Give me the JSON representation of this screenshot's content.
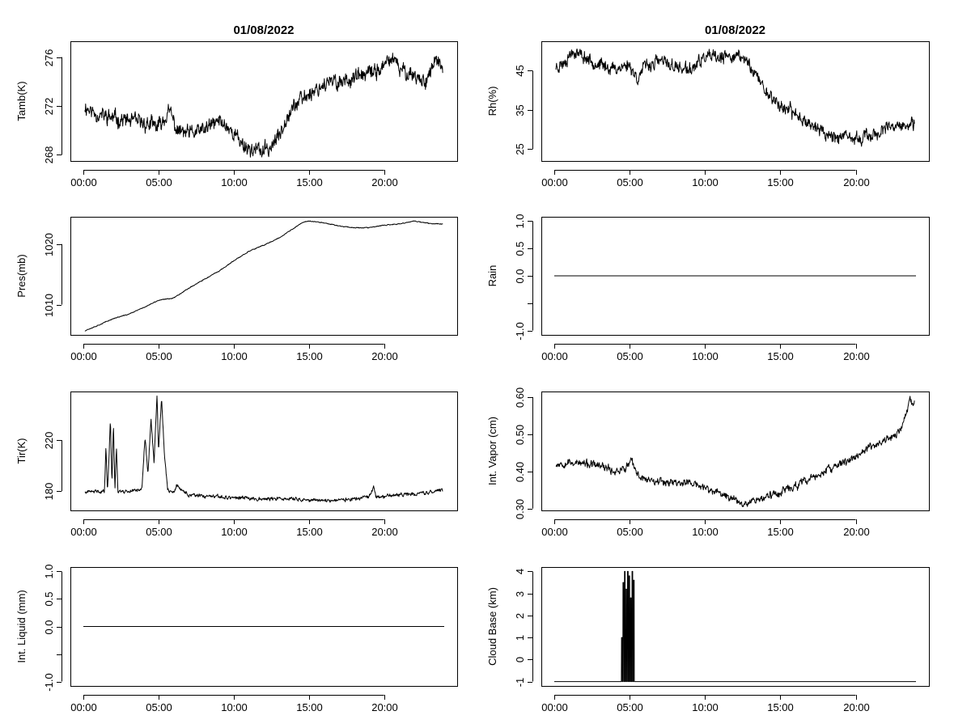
{
  "chart_data": [
    {
      "id": "tamb",
      "type": "line",
      "title": "01/08/2022",
      "xlabel": "",
      "ylabel": "Tamb(K)",
      "x_ticks": [
        "00:00",
        "05:00",
        "10:00",
        "15:00",
        "20:00"
      ],
      "x_tick_hours": [
        0,
        5,
        10,
        15,
        20
      ],
      "xlim": [
        0,
        24
      ],
      "ylim": [
        267.5,
        277.3
      ],
      "y_ticks": [
        268,
        272,
        276
      ],
      "y_tick_labels": [
        "268",
        "272",
        "276"
      ],
      "noise": 0.55,
      "seed": 11,
      "series": [
        {
          "name": "Tamb",
          "x": [
            0.1,
            0.5,
            1,
            2,
            3,
            4,
            5,
            5.5,
            5.8,
            6.2,
            7,
            8,
            9,
            9.5,
            10,
            10.5,
            11,
            12,
            12.5,
            13,
            13.5,
            14,
            15,
            16,
            17,
            18,
            19,
            20,
            20.5,
            21,
            22,
            22.5,
            23,
            23.5,
            23.9
          ],
          "y": [
            272.0,
            271.6,
            271.3,
            271.0,
            270.8,
            270.6,
            270.3,
            271.2,
            271.5,
            270.0,
            269.7,
            270.0,
            270.8,
            270.4,
            269.8,
            269.0,
            268.5,
            268.3,
            268.7,
            269.5,
            271.2,
            272.0,
            273.0,
            273.8,
            274.0,
            274.3,
            274.6,
            275.2,
            276.0,
            275.0,
            274.6,
            274.0,
            274.5,
            276.0,
            274.5
          ]
        }
      ]
    },
    {
      "id": "rh",
      "type": "line",
      "title": "01/08/2022",
      "xlabel": "",
      "ylabel": "Rh(%)",
      "x_ticks": [
        "00:00",
        "05:00",
        "10:00",
        "15:00",
        "20:00"
      ],
      "x_tick_hours": [
        0,
        5,
        10,
        15,
        20
      ],
      "xlim": [
        0,
        24
      ],
      "ylim": [
        22,
        52.5
      ],
      "y_ticks": [
        25,
        35,
        45
      ],
      "y_tick_labels": [
        "25",
        "35",
        "45"
      ],
      "noise": 1.4,
      "seed": 23,
      "series": [
        {
          "name": "Rh",
          "x": [
            0.1,
            0.6,
            1,
            1.3,
            2,
            3,
            4,
            5,
            5.5,
            6,
            7,
            8,
            9,
            10,
            11,
            12,
            12.8,
            13.2,
            13.7,
            14,
            15,
            16,
            17,
            18,
            19,
            20,
            21,
            22,
            23,
            23.9
          ],
          "y": [
            46,
            47,
            49,
            50,
            48.5,
            46.5,
            45.5,
            46.5,
            43,
            46,
            47.5,
            46,
            45,
            48.5,
            48,
            49,
            47.5,
            45,
            42,
            40,
            36,
            34,
            31.5,
            29,
            28,
            27.5,
            28.5,
            30,
            31,
            31
          ]
        }
      ]
    },
    {
      "id": "pres",
      "type": "line",
      "title": "",
      "xlabel": "",
      "ylabel": "Pres(mb)",
      "x_ticks": [
        "00:00",
        "05:00",
        "10:00",
        "15:00",
        "20:00"
      ],
      "x_tick_hours": [
        0,
        5,
        10,
        15,
        20
      ],
      "xlim": [
        0,
        24
      ],
      "ylim": [
        1005,
        1024.5
      ],
      "y_ticks": [
        1010,
        1020
      ],
      "y_tick_labels": [
        "1010",
        "1020"
      ],
      "noise": 0.06,
      "seed": 37,
      "series": [
        {
          "name": "Pres",
          "x": [
            0.1,
            1,
            2,
            3,
            4,
            5,
            6,
            7,
            8,
            9,
            10,
            11,
            12,
            13,
            14,
            14.6,
            15,
            16,
            17,
            18,
            19,
            20,
            21,
            22,
            23,
            23.9
          ],
          "y": [
            1005.7,
            1006.6,
            1007.7,
            1008.4,
            1009.5,
            1010.7,
            1011.1,
            1012.7,
            1014.1,
            1015.5,
            1017.2,
            1018.8,
            1019.8,
            1021.0,
            1022.6,
            1023.6,
            1023.8,
            1023.5,
            1023.0,
            1022.7,
            1022.7,
            1023.1,
            1023.3,
            1023.8,
            1023.4,
            1023.3
          ]
        }
      ]
    },
    {
      "id": "rain",
      "type": "line",
      "title": "",
      "xlabel": "",
      "ylabel": "Rain",
      "x_ticks": [
        "00:00",
        "05:00",
        "10:00",
        "15:00",
        "20:00"
      ],
      "x_tick_hours": [
        0,
        5,
        10,
        15,
        20
      ],
      "xlim": [
        0,
        24
      ],
      "ylim": [
        -1.08,
        1.08
      ],
      "y_ticks": [
        -1.0,
        -0.5,
        0.0,
        0.5,
        1.0
      ],
      "y_tick_labels": [
        "-1.0",
        "",
        "0.0",
        "0.5",
        "1.0"
      ],
      "noise": 0,
      "seed": 1,
      "series": [
        {
          "name": "Rain",
          "x": [
            0,
            24
          ],
          "y": [
            0,
            0
          ]
        }
      ]
    },
    {
      "id": "tir",
      "type": "line",
      "title": "",
      "xlabel": "",
      "ylabel": "Tir(K)",
      "x_ticks": [
        "00:00",
        "05:00",
        "10:00",
        "15:00",
        "20:00"
      ],
      "x_tick_hours": [
        0,
        5,
        10,
        15,
        20
      ],
      "xlim": [
        0,
        24
      ],
      "ylim": [
        165,
        258
      ],
      "y_ticks": [
        180,
        220
      ],
      "y_tick_labels": [
        "180",
        "220"
      ],
      "noise": 1.2,
      "seed": 41,
      "series": [
        {
          "name": "Tir",
          "x": [
            0.1,
            1,
            1.4,
            1.5,
            1.6,
            1.7,
            1.8,
            1.9,
            2.0,
            2.1,
            2.2,
            2.3,
            2.4,
            3,
            3.9,
            4.1,
            4.3,
            4.5,
            4.7,
            4.9,
            5.0,
            5.2,
            5.4,
            5.6,
            5.8,
            6.0,
            6.2,
            7,
            8,
            10,
            12,
            14,
            15,
            16,
            17,
            18,
            19,
            19.3,
            19.5,
            20,
            21,
            22,
            23,
            23.9
          ],
          "y": [
            179,
            180,
            180,
            215,
            180,
            205,
            237,
            186,
            232,
            182,
            215,
            180,
            180,
            180,
            182,
            222,
            193,
            238,
            202,
            256,
            212,
            252,
            208,
            182,
            179,
            179,
            184,
            177,
            176,
            175,
            174,
            174,
            173,
            173,
            173,
            174,
            175,
            183,
            175,
            176,
            177,
            178,
            179,
            181
          ]
        }
      ]
    },
    {
      "id": "vapor",
      "type": "line",
      "title": "",
      "xlabel": "",
      "ylabel": "Int. Vapor (cm)",
      "x_ticks": [
        "00:00",
        "05:00",
        "10:00",
        "15:00",
        "20:00"
      ],
      "x_tick_hours": [
        0,
        5,
        10,
        15,
        20
      ],
      "xlim": [
        0,
        24
      ],
      "ylim": [
        0.295,
        0.615
      ],
      "y_ticks": [
        0.3,
        0.4,
        0.5,
        0.6
      ],
      "y_tick_labels": [
        "0.30",
        "0.40",
        "0.50",
        "0.60"
      ],
      "noise": 0.009,
      "seed": 53,
      "series": [
        {
          "name": "Int. Vapor",
          "x": [
            0.1,
            1,
            2,
            3,
            4,
            4.8,
            5.1,
            5.5,
            6,
            7,
            8,
            9,
            10,
            11,
            12,
            12.5,
            13,
            14,
            15,
            16,
            17,
            18,
            19,
            20,
            21,
            22,
            22.5,
            23,
            23.3,
            23.6,
            23.9
          ],
          "y": [
            0.42,
            0.425,
            0.42,
            0.415,
            0.4,
            0.41,
            0.43,
            0.39,
            0.38,
            0.375,
            0.37,
            0.37,
            0.355,
            0.34,
            0.325,
            0.315,
            0.32,
            0.33,
            0.345,
            0.36,
            0.38,
            0.4,
            0.42,
            0.44,
            0.465,
            0.485,
            0.495,
            0.51,
            0.55,
            0.59,
            0.575
          ]
        }
      ]
    },
    {
      "id": "liquid",
      "type": "line",
      "title": "",
      "xlabel": "",
      "ylabel": "Int. Liquid (mm)",
      "x_ticks": [
        "00:00",
        "05:00",
        "10:00",
        "15:00",
        "20:00"
      ],
      "x_tick_hours": [
        0,
        5,
        10,
        15,
        20
      ],
      "xlim": [
        0,
        24
      ],
      "ylim": [
        -1.08,
        1.08
      ],
      "y_ticks": [
        -1.0,
        -0.5,
        0.0,
        0.5,
        1.0
      ],
      "y_tick_labels": [
        "-1.0",
        "",
        "0.0",
        "0.5",
        "1.0"
      ],
      "noise": 0,
      "seed": 2,
      "series": [
        {
          "name": "Int. Liquid",
          "x": [
            0,
            24
          ],
          "y": [
            0,
            0
          ]
        }
      ]
    },
    {
      "id": "cloud",
      "type": "line",
      "title": "",
      "xlabel": "",
      "ylabel": "Cloud Base (km)",
      "x_ticks": [
        "00:00",
        "05:00",
        "10:00",
        "15:00",
        "20:00"
      ],
      "x_tick_hours": [
        0,
        5,
        10,
        15,
        20
      ],
      "xlim": [
        0,
        24
      ],
      "ylim": [
        -1.2,
        4.2
      ],
      "y_ticks": [
        -1,
        0,
        1,
        2,
        3,
        4
      ],
      "y_tick_labels": [
        "-1",
        "0",
        "1",
        "2",
        "3",
        "4"
      ],
      "noise": 0,
      "seed": 3,
      "series": [
        {
          "name": "Cloud Base",
          "x": [
            0,
            4.45,
            4.46,
            4.5,
            4.51,
            4.55,
            4.56,
            4.6,
            4.61,
            4.65,
            4.66,
            4.7,
            4.71,
            4.75,
            4.76,
            4.8,
            4.81,
            4.85,
            4.86,
            4.9,
            4.91,
            4.95,
            4.96,
            5.0,
            5.01,
            5.05,
            5.06,
            5.1,
            5.11,
            5.15,
            5.16,
            5.2,
            5.21,
            5.25,
            5.26,
            5.3,
            5.31,
            24
          ],
          "y": [
            -1,
            -1,
            1.0,
            1.0,
            -1,
            -1,
            3.5,
            3.5,
            -1,
            -1,
            4.0,
            4.0,
            -1,
            -1,
            3.2,
            3.2,
            -1,
            -1,
            4.0,
            4.0,
            -1,
            -1,
            3.8,
            3.8,
            -1,
            -1,
            2.8,
            2.8,
            -1,
            -1,
            4.0,
            4.0,
            -1,
            -1,
            3.6,
            3.6,
            -1,
            -1
          ]
        }
      ]
    }
  ]
}
